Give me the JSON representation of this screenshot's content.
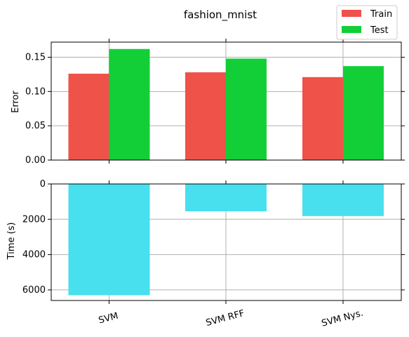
{
  "chart_data": [
    {
      "type": "bar",
      "title": "fashion_mnist",
      "xlabel": "",
      "ylabel": "Error",
      "categories": [
        "SVM",
        "SVM RFF",
        "SVM Nys."
      ],
      "series": [
        {
          "name": "Train",
          "values": [
            0.126,
            0.128,
            0.121
          ],
          "color": "#ef5249"
        },
        {
          "name": "Test",
          "values": [
            0.162,
            0.148,
            0.137
          ],
          "color": "#12cf37"
        }
      ],
      "ylim": [
        0,
        0.172
      ],
      "yticks": [
        0.0,
        0.05,
        0.1,
        0.15
      ],
      "ytick_labels": [
        "0.00",
        "0.05",
        "0.10",
        "0.15"
      ],
      "grid": true,
      "legend": "top-right"
    },
    {
      "type": "bar",
      "xlabel": "",
      "ylabel": "Time (s)",
      "categories": [
        "SVM",
        "SVM RFF",
        "SVM Nys."
      ],
      "series": [
        {
          "values": [
            6300,
            1550,
            1820
          ],
          "color": "#48dfef"
        }
      ],
      "ylim": [
        0,
        6600
      ],
      "inverted_y": true,
      "yticks": [
        0,
        2000,
        4000,
        6000
      ],
      "ytick_labels": [
        "0",
        "2000",
        "4000",
        "6000"
      ],
      "grid": true
    }
  ],
  "colors": {
    "train": "#ef5249",
    "test": "#12cf37",
    "time": "#48dfef",
    "grid": "#b0b0b0",
    "axis": "#000000"
  }
}
